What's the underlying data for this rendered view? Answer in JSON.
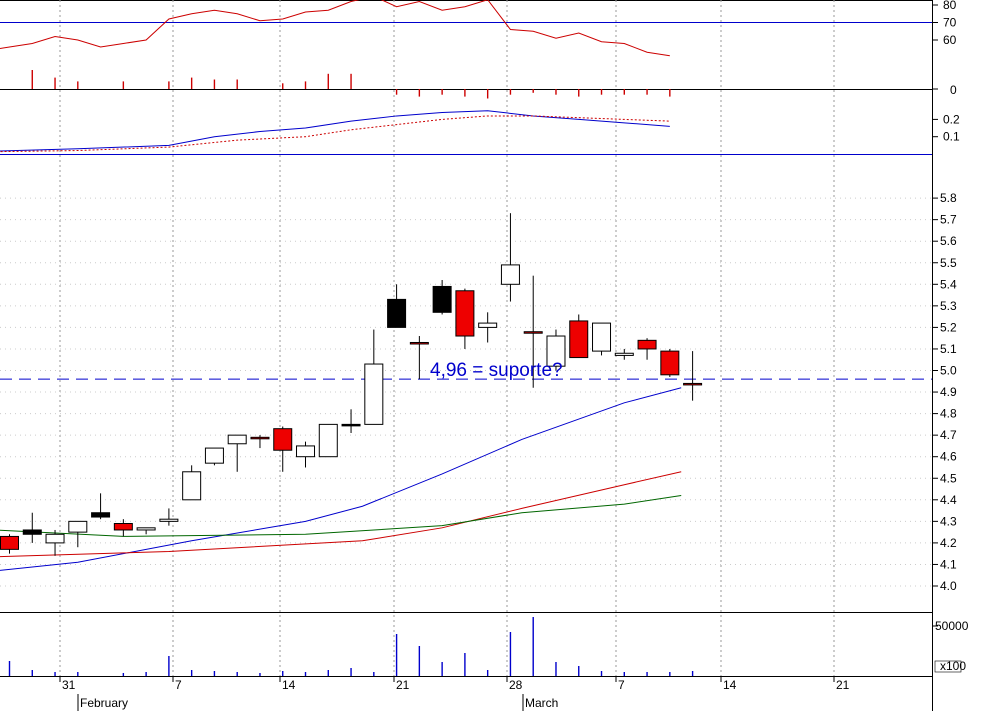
{
  "chart_data": {
    "type": "candlestick",
    "annotation": "4,96 = suporte?",
    "support_level": 4.96,
    "x": {
      "day_labels": [
        "31",
        "7",
        "14",
        "21",
        "28",
        "7",
        "14",
        "21"
      ],
      "month_labels": [
        "February",
        "March"
      ]
    },
    "candles": [
      {
        "o": 4.23,
        "h": 4.24,
        "l": 4.15,
        "c": 4.17,
        "color": "red"
      },
      {
        "o": 4.24,
        "h": 4.34,
        "l": 4.2,
        "c": 4.26,
        "color": "black"
      },
      {
        "o": 4.2,
        "h": 4.26,
        "l": 4.14,
        "c": 4.24,
        "color": "white"
      },
      {
        "o": 4.25,
        "h": 4.3,
        "l": 4.18,
        "c": 4.3,
        "color": "white"
      },
      {
        "o": 4.32,
        "h": 4.43,
        "l": 4.31,
        "c": 4.34,
        "color": "black"
      },
      {
        "o": 4.29,
        "h": 4.31,
        "l": 4.23,
        "c": 4.26,
        "color": "red"
      },
      {
        "o": 4.26,
        "h": 4.27,
        "l": 4.24,
        "c": 4.27,
        "color": "white"
      },
      {
        "o": 4.3,
        "h": 4.36,
        "l": 4.28,
        "c": 4.31,
        "color": "white"
      },
      {
        "o": 4.4,
        "h": 4.56,
        "l": 4.4,
        "c": 4.53,
        "color": "white"
      },
      {
        "o": 4.57,
        "h": 4.64,
        "l": 4.56,
        "c": 4.64,
        "color": "white"
      },
      {
        "o": 4.66,
        "h": 4.7,
        "l": 4.53,
        "c": 4.7,
        "color": "white"
      },
      {
        "o": 4.69,
        "h": 4.7,
        "l": 4.64,
        "c": 4.69,
        "color": "red"
      },
      {
        "o": 4.73,
        "h": 4.74,
        "l": 4.53,
        "c": 4.63,
        "color": "red"
      },
      {
        "o": 4.6,
        "h": 4.67,
        "l": 4.55,
        "c": 4.65,
        "color": "white"
      },
      {
        "o": 4.6,
        "h": 4.75,
        "l": 4.6,
        "c": 4.75,
        "color": "white"
      },
      {
        "o": 4.75,
        "h": 4.82,
        "l": 4.71,
        "c": 4.75,
        "color": "black"
      },
      {
        "o": 4.75,
        "h": 5.19,
        "l": 4.75,
        "c": 5.03,
        "color": "white"
      },
      {
        "o": 5.2,
        "h": 5.4,
        "l": 5.2,
        "c": 5.33,
        "color": "black"
      },
      {
        "o": 5.13,
        "h": 5.16,
        "l": 4.96,
        "c": 5.13,
        "color": "red"
      },
      {
        "o": 5.27,
        "h": 5.42,
        "l": 5.26,
        "c": 5.39,
        "color": "black"
      },
      {
        "o": 5.37,
        "h": 5.38,
        "l": 5.1,
        "c": 5.16,
        "color": "red"
      },
      {
        "o": 5.2,
        "h": 5.27,
        "l": 5.13,
        "c": 5.22,
        "color": "white"
      },
      {
        "o": 5.4,
        "h": 5.73,
        "l": 5.32,
        "c": 5.49,
        "color": "white"
      },
      {
        "o": 5.18,
        "h": 5.44,
        "l": 4.92,
        "c": 5.18,
        "color": "red"
      },
      {
        "o": 5.02,
        "h": 5.19,
        "l": 5.0,
        "c": 5.16,
        "color": "white"
      },
      {
        "o": 5.23,
        "h": 5.26,
        "l": 5.06,
        "c": 5.06,
        "color": "red"
      },
      {
        "o": 5.09,
        "h": 5.22,
        "l": 5.07,
        "c": 5.22,
        "color": "white"
      },
      {
        "o": 5.07,
        "h": 5.1,
        "l": 5.05,
        "c": 5.08,
        "color": "white"
      },
      {
        "o": 5.14,
        "h": 5.15,
        "l": 5.05,
        "c": 5.1,
        "color": "red"
      },
      {
        "o": 5.09,
        "h": 5.1,
        "l": 4.97,
        "c": 4.98,
        "color": "red"
      },
      {
        "o": 4.94,
        "h": 5.09,
        "l": 4.86,
        "c": 4.94,
        "color": "red"
      }
    ],
    "moving_averages": [
      {
        "color": "#0000cc",
        "points": [
          [
            -2.5,
            4.05
          ],
          [
            3,
            4.11
          ],
          [
            8,
            4.21
          ],
          [
            13,
            4.3
          ],
          [
            15.5,
            4.37
          ],
          [
            19,
            4.52
          ],
          [
            22.5,
            4.68
          ],
          [
            27,
            4.85
          ],
          [
            29.5,
            4.92
          ]
        ]
      },
      {
        "color": "#cc0000",
        "points": [
          [
            -2.5,
            4.13
          ],
          [
            7,
            4.16
          ],
          [
            15.5,
            4.21
          ],
          [
            19,
            4.27
          ],
          [
            22.5,
            4.36
          ],
          [
            27,
            4.47
          ],
          [
            29.5,
            4.53
          ]
        ]
      },
      {
        "color": "#006600",
        "points": [
          [
            -2.5,
            4.27
          ],
          [
            5,
            4.23
          ],
          [
            13,
            4.24
          ],
          [
            19,
            4.28
          ],
          [
            22.5,
            4.34
          ],
          [
            27,
            4.38
          ],
          [
            29.5,
            4.42
          ]
        ]
      }
    ],
    "price_axis": {
      "ticks": [
        4.0,
        4.1,
        4.2,
        4.3,
        4.4,
        4.5,
        4.6,
        4.7,
        4.8,
        4.9,
        5.0,
        5.1,
        5.2,
        5.3,
        5.4,
        5.5,
        5.6,
        5.7,
        5.8
      ]
    },
    "oscillator": {
      "ticks": [
        60,
        70,
        80
      ],
      "reference_level": 70,
      "line": [
        [
          -2.5,
          49
        ],
        [
          -1.5,
          53
        ],
        [
          0,
          56
        ],
        [
          1,
          58
        ],
        [
          2,
          62
        ],
        [
          3,
          60
        ],
        [
          4,
          56
        ],
        [
          5,
          58
        ],
        [
          6,
          60
        ],
        [
          7,
          72
        ],
        [
          8,
          75
        ],
        [
          9,
          77
        ],
        [
          10,
          75
        ],
        [
          11,
          71
        ],
        [
          12,
          72
        ],
        [
          13,
          76
        ],
        [
          14,
          77
        ],
        [
          15,
          82
        ],
        [
          16,
          85
        ],
        [
          17,
          79
        ],
        [
          18,
          82
        ],
        [
          19,
          77
        ],
        [
          20,
          79
        ],
        [
          21,
          83
        ],
        [
          22,
          66
        ],
        [
          23,
          65
        ],
        [
          24,
          61
        ],
        [
          25,
          64
        ],
        [
          26,
          59
        ],
        [
          27,
          58
        ],
        [
          28,
          53
        ],
        [
          29,
          51
        ]
      ]
    },
    "histogram": {
      "ticks": [
        0
      ],
      "bars": [
        [
          -2.5,
          1
        ],
        [
          -1.5,
          1
        ],
        [
          -0.5,
          1.3
        ],
        [
          1,
          1
        ],
        [
          2,
          0.6
        ],
        [
          3,
          0.4
        ],
        [
          5,
          0.4
        ],
        [
          7,
          0.4
        ],
        [
          8,
          0.6
        ],
        [
          9,
          0.5
        ],
        [
          10,
          0.5
        ],
        [
          12,
          0.3
        ],
        [
          13,
          0.4
        ],
        [
          14,
          0.8
        ],
        [
          15,
          0.8
        ],
        [
          17,
          -0.3
        ],
        [
          18,
          -0.4
        ],
        [
          19,
          -0.3
        ],
        [
          20,
          -0.4
        ],
        [
          21,
          -0.5
        ],
        [
          22,
          -0.3
        ],
        [
          23,
          -0.2
        ],
        [
          24,
          -0.3
        ],
        [
          25,
          -0.4
        ],
        [
          26,
          -0.3
        ],
        [
          27,
          -0.3
        ],
        [
          28,
          -0.3
        ],
        [
          29,
          -0.4
        ]
      ]
    },
    "macd": {
      "ticks": [
        0.1,
        0.2
      ],
      "line": [
        [
          -2.5,
          0.01
        ],
        [
          3,
          0.03
        ],
        [
          7,
          0.05
        ],
        [
          9,
          0.1
        ],
        [
          11,
          0.13
        ],
        [
          13,
          0.15
        ],
        [
          15,
          0.19
        ],
        [
          17,
          0.22
        ],
        [
          19,
          0.24
        ],
        [
          21,
          0.25
        ],
        [
          23,
          0.22
        ],
        [
          25,
          0.2
        ],
        [
          27,
          0.18
        ],
        [
          29,
          0.16
        ]
      ],
      "signal": [
        [
          -2.5,
          0.01
        ],
        [
          3,
          0.02
        ],
        [
          7,
          0.04
        ],
        [
          10,
          0.08
        ],
        [
          13,
          0.1
        ],
        [
          15,
          0.14
        ],
        [
          17,
          0.17
        ],
        [
          19,
          0.2
        ],
        [
          21,
          0.22
        ],
        [
          23,
          0.22
        ],
        [
          25,
          0.21
        ],
        [
          27,
          0.2
        ],
        [
          29,
          0.19
        ]
      ]
    },
    "volume": {
      "ticks": [
        "50000"
      ],
      "unit_label": "x100",
      "bars": [
        [
          -1.5,
          200
        ],
        [
          0,
          150
        ],
        [
          1,
          60
        ],
        [
          2,
          40
        ],
        [
          3,
          40
        ],
        [
          5,
          30
        ],
        [
          6,
          40
        ],
        [
          7,
          200
        ],
        [
          8,
          60
        ],
        [
          9,
          50
        ],
        [
          10,
          40
        ],
        [
          11,
          30
        ],
        [
          12,
          50
        ],
        [
          13,
          40
        ],
        [
          14,
          60
        ],
        [
          15,
          80
        ],
        [
          16,
          40
        ],
        [
          17,
          420
        ],
        [
          18,
          300
        ],
        [
          19,
          140
        ],
        [
          20,
          230
        ],
        [
          21,
          60
        ],
        [
          22,
          440
        ],
        [
          23,
          590
        ],
        [
          24,
          140
        ],
        [
          25,
          100
        ],
        [
          26,
          50
        ],
        [
          27,
          40
        ],
        [
          28,
          40
        ],
        [
          29,
          40
        ],
        [
          30,
          50
        ]
      ]
    }
  }
}
